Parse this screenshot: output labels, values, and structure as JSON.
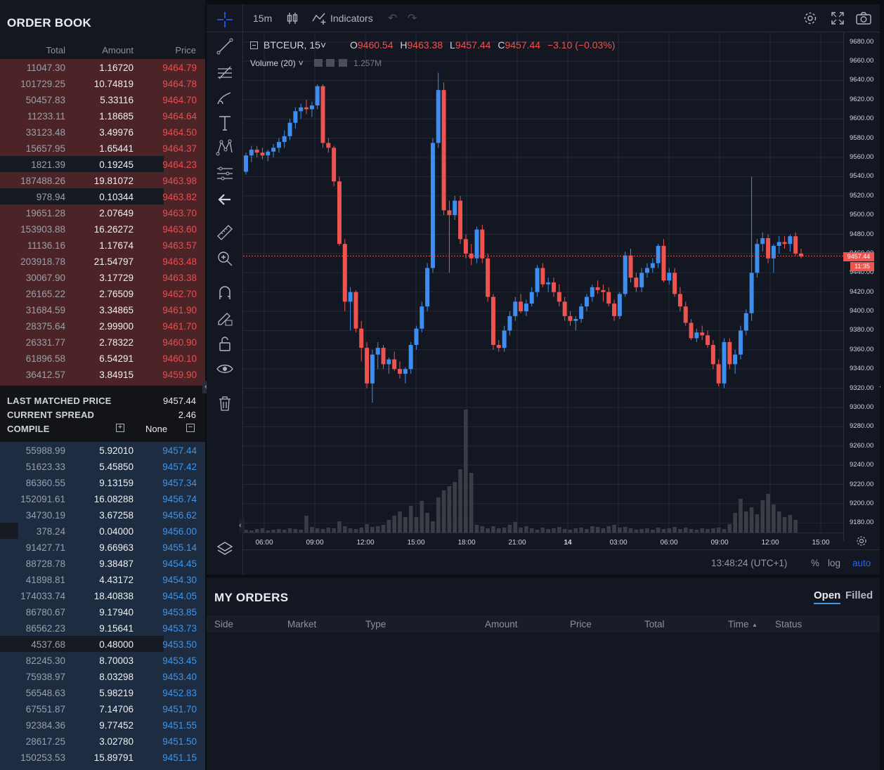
{
  "orderbook": {
    "title": "ORDER BOOK",
    "columns": {
      "total": "Total",
      "amount": "Amount",
      "price": "Price"
    },
    "asks": [
      {
        "total": "11047.30",
        "amount": "1.16720",
        "price": "9464.79"
      },
      {
        "total": "101729.25",
        "amount": "10.74819",
        "price": "9464.78"
      },
      {
        "total": "50457.83",
        "amount": "5.33116",
        "price": "9464.70"
      },
      {
        "total": "11233.11",
        "amount": "1.18685",
        "price": "9464.64"
      },
      {
        "total": "33123.48",
        "amount": "3.49976",
        "price": "9464.50"
      },
      {
        "total": "15657.95",
        "amount": "1.65441",
        "price": "9464.37"
      },
      {
        "total": "1821.39",
        "amount": "0.19245",
        "price": "9464.23"
      },
      {
        "total": "187488.26",
        "amount": "19.81072",
        "price": "9463.98"
      },
      {
        "total": "978.94",
        "amount": "0.10344",
        "price": "9463.82"
      },
      {
        "total": "19651.28",
        "amount": "2.07649",
        "price": "9463.70"
      },
      {
        "total": "153903.88",
        "amount": "16.26272",
        "price": "9463.60"
      },
      {
        "total": "11136.16",
        "amount": "1.17674",
        "price": "9463.57"
      },
      {
        "total": "203918.78",
        "amount": "21.54797",
        "price": "9463.48"
      },
      {
        "total": "30067.90",
        "amount": "3.17729",
        "price": "9463.38"
      },
      {
        "total": "26165.22",
        "amount": "2.76509",
        "price": "9462.70"
      },
      {
        "total": "31684.59",
        "amount": "3.34865",
        "price": "9461.90"
      },
      {
        "total": "28375.64",
        "amount": "2.99900",
        "price": "9461.70"
      },
      {
        "total": "26331.77",
        "amount": "2.78322",
        "price": "9460.90"
      },
      {
        "total": "61896.58",
        "amount": "6.54291",
        "price": "9460.10"
      },
      {
        "total": "36412.57",
        "amount": "3.84915",
        "price": "9459.90"
      }
    ],
    "bids": [
      {
        "total": "55988.99",
        "amount": "5.92010",
        "price": "9457.44"
      },
      {
        "total": "51623.33",
        "amount": "5.45850",
        "price": "9457.42"
      },
      {
        "total": "86360.55",
        "amount": "9.13159",
        "price": "9457.34"
      },
      {
        "total": "152091.61",
        "amount": "16.08288",
        "price": "9456.74"
      },
      {
        "total": "34730.19",
        "amount": "3.67258",
        "price": "9456.62"
      },
      {
        "total": "378.24",
        "amount": "0.04000",
        "price": "9456.00"
      },
      {
        "total": "91427.71",
        "amount": "9.66963",
        "price": "9455.14"
      },
      {
        "total": "88728.78",
        "amount": "9.38487",
        "price": "9454.45"
      },
      {
        "total": "41898.81",
        "amount": "4.43172",
        "price": "9454.30"
      },
      {
        "total": "174033.74",
        "amount": "18.40838",
        "price": "9454.05"
      },
      {
        "total": "86780.67",
        "amount": "9.17940",
        "price": "9453.85"
      },
      {
        "total": "86562.23",
        "amount": "9.15641",
        "price": "9453.73"
      },
      {
        "total": "4537.68",
        "amount": "0.48000",
        "price": "9453.50"
      },
      {
        "total": "82245.30",
        "amount": "8.70003",
        "price": "9453.45"
      },
      {
        "total": "75938.97",
        "amount": "8.03298",
        "price": "9453.40"
      },
      {
        "total": "56548.63",
        "amount": "5.98219",
        "price": "9452.83"
      },
      {
        "total": "67551.87",
        "amount": "7.14706",
        "price": "9451.70"
      },
      {
        "total": "92384.36",
        "amount": "9.77452",
        "price": "9451.55"
      },
      {
        "total": "28617.25",
        "amount": "3.02780",
        "price": "9451.50"
      },
      {
        "total": "150253.53",
        "amount": "15.89791",
        "price": "9451.15"
      }
    ],
    "last_matched_label": "LAST MATCHED PRICE",
    "last_matched_value": "9457.44",
    "spread_label": "CURRENT SPREAD",
    "spread_value": "2.46",
    "compile_label": "COMPILE",
    "compile_value": "None",
    "colors": {
      "ask_bg": "#4c2427",
      "bid_bg": "#1d2c40",
      "ask_price": "#eb4d4f",
      "bid_price": "#3e95ec"
    }
  },
  "chart": {
    "interval": "15m",
    "indicators_label": "Indicators",
    "symbol": "BTCEUR, 15",
    "ohlc": {
      "o_label": "O",
      "o": "9460.54",
      "h_label": "H",
      "h": "9463.38",
      "l_label": "L",
      "l": "9457.44",
      "c_label": "C",
      "c": "9457.44",
      "change": "−3.10 (−0.03%)"
    },
    "volume_label": "Volume (20)",
    "volume_value": "1.257M",
    "price_ticks": [
      "9680.00",
      "9660.00",
      "9640.00",
      "9620.00",
      "9600.00",
      "9580.00",
      "9560.00",
      "9540.00",
      "9520.00",
      "9500.00",
      "9480.00",
      "9460.00",
      "9440.00",
      "9420.00",
      "9400.00",
      "9380.00",
      "9360.00",
      "9340.00",
      "9320.00",
      "9300.00",
      "9280.00",
      "9260.00",
      "9240.00",
      "9220.00",
      "9200.00",
      "9180.00"
    ],
    "time_ticks": [
      "06:00",
      "09:00",
      "12:00",
      "15:00",
      "18:00",
      "21:00",
      "14",
      "03:00",
      "06:00",
      "09:00",
      "12:00",
      "15:00"
    ],
    "last_price_tag": "9457.44",
    "countdown_tag": "11:35",
    "clock": "13:48:24 (UTC+1)",
    "percent_label": "%",
    "log_label": "log",
    "auto_label": "auto",
    "colors": {
      "up": "#3d8ef0",
      "down": "#ef5350",
      "bg": "#131722",
      "grid": "#242936"
    },
    "icons": [
      "crosshair-icon",
      "trend-line-icon",
      "fib-icon",
      "brush-icon",
      "text-icon",
      "pattern-icon",
      "forecast-icon",
      "back-arrow-icon",
      "ruler-icon",
      "zoom-in-icon",
      "magnet-icon",
      "lock-pencil-icon",
      "lock-icon",
      "eye-icon",
      "trash-icon",
      "layers-icon",
      "settings-icon",
      "fullscreen-icon",
      "camera-icon",
      "undo-icon",
      "redo-icon",
      "bar-style-icon",
      "indicators-icon"
    ]
  },
  "chart_data": {
    "type": "candlestick",
    "symbol": "BTCEUR",
    "interval": "15",
    "ylim": [
      9170,
      9690
    ],
    "x_ticks": [
      "06:00",
      "09:00",
      "12:00",
      "15:00",
      "18:00",
      "21:00",
      "14",
      "03:00",
      "06:00",
      "09:00",
      "12:00",
      "15:00"
    ],
    "candles": [
      [
        9545,
        9565,
        9542,
        9562
      ],
      [
        9562,
        9572,
        9555,
        9568
      ],
      [
        9568,
        9572,
        9560,
        9565
      ],
      [
        9565,
        9570,
        9558,
        9562
      ],
      [
        9562,
        9568,
        9556,
        9566
      ],
      [
        9566,
        9574,
        9560,
        9570
      ],
      [
        9570,
        9580,
        9565,
        9576
      ],
      [
        9576,
        9588,
        9570,
        9582
      ],
      [
        9582,
        9600,
        9578,
        9596
      ],
      [
        9596,
        9612,
        9590,
        9608
      ],
      [
        9608,
        9616,
        9600,
        9612
      ],
      [
        9612,
        9620,
        9605,
        9610
      ],
      [
        9610,
        9618,
        9602,
        9614
      ],
      [
        9614,
        9636,
        9610,
        9634
      ],
      [
        9634,
        9636,
        9570,
        9575
      ],
      [
        9575,
        9580,
        9565,
        9570
      ],
      [
        9570,
        9572,
        9530,
        9535
      ],
      [
        9535,
        9540,
        9468,
        9470
      ],
      [
        9470,
        9475,
        9400,
        9410
      ],
      [
        9410,
        9425,
        9380,
        9420
      ],
      [
        9420,
        9422,
        9378,
        9382
      ],
      [
        9382,
        9390,
        9348,
        9362
      ],
      [
        9362,
        9368,
        9320,
        9325
      ],
      [
        9325,
        9360,
        9305,
        9355
      ],
      [
        9355,
        9368,
        9340,
        9362
      ],
      [
        9362,
        9365,
        9340,
        9345
      ],
      [
        9345,
        9352,
        9335,
        9350
      ],
      [
        9350,
        9358,
        9338,
        9340
      ],
      [
        9340,
        9348,
        9330,
        9335
      ],
      [
        9335,
        9342,
        9325,
        9340
      ],
      [
        9340,
        9368,
        9335,
        9365
      ],
      [
        9365,
        9385,
        9360,
        9382
      ],
      [
        9382,
        9410,
        9378,
        9405
      ],
      [
        9405,
        9450,
        9400,
        9445
      ],
      [
        9445,
        9580,
        9440,
        9575
      ],
      [
        9575,
        9648,
        9570,
        9630
      ],
      [
        9630,
        9638,
        9500,
        9505
      ],
      [
        9505,
        9515,
        9440,
        9500
      ],
      [
        9500,
        9520,
        9495,
        9515
      ],
      [
        9515,
        9520,
        9470,
        9475
      ],
      [
        9475,
        9480,
        9455,
        9460
      ],
      [
        9460,
        9470,
        9448,
        9455
      ],
      [
        9455,
        9488,
        9450,
        9485
      ],
      [
        9485,
        9490,
        9450,
        9455
      ],
      [
        9455,
        9460,
        9410,
        9415
      ],
      [
        9415,
        9418,
        9360,
        9365
      ],
      [
        9365,
        9370,
        9358,
        9362
      ],
      [
        9362,
        9385,
        9358,
        9380
      ],
      [
        9380,
        9400,
        9375,
        9395
      ],
      [
        9395,
        9415,
        9390,
        9410
      ],
      [
        9410,
        9418,
        9398,
        9400
      ],
      [
        9400,
        9412,
        9395,
        9408
      ],
      [
        9408,
        9425,
        9405,
        9420
      ],
      [
        9420,
        9448,
        9415,
        9445
      ],
      [
        9445,
        9450,
        9425,
        9428
      ],
      [
        9428,
        9435,
        9420,
        9430
      ],
      [
        9430,
        9435,
        9415,
        9420
      ],
      [
        9420,
        9428,
        9405,
        9410
      ],
      [
        9410,
        9415,
        9390,
        9395
      ],
      [
        9395,
        9400,
        9385,
        9390
      ],
      [
        9390,
        9395,
        9380,
        9392
      ],
      [
        9392,
        9408,
        9388,
        9405
      ],
      [
        9405,
        9418,
        9400,
        9415
      ],
      [
        9415,
        9428,
        9410,
        9425
      ],
      [
        9425,
        9432,
        9418,
        9422
      ],
      [
        9422,
        9428,
        9410,
        9420
      ],
      [
        9420,
        9425,
        9405,
        9408
      ],
      [
        9408,
        9412,
        9390,
        9395
      ],
      [
        9395,
        9420,
        9392,
        9418
      ],
      [
        9418,
        9462,
        9415,
        9458
      ],
      [
        9458,
        9465,
        9430,
        9435
      ],
      [
        9435,
        9440,
        9420,
        9425
      ],
      [
        9425,
        9445,
        9420,
        9440
      ],
      [
        9440,
        9450,
        9435,
        9445
      ],
      [
        9445,
        9455,
        9440,
        9450
      ],
      [
        9450,
        9470,
        9445,
        9468
      ],
      [
        9468,
        9475,
        9430,
        9432
      ],
      [
        9432,
        9445,
        9428,
        9440
      ],
      [
        9440,
        9445,
        9415,
        9418
      ],
      [
        9418,
        9425,
        9400,
        9405
      ],
      [
        9405,
        9410,
        9385,
        9388
      ],
      [
        9388,
        9392,
        9370,
        9372
      ],
      [
        9372,
        9382,
        9368,
        9378
      ],
      [
        9378,
        9385,
        9370,
        9375
      ],
      [
        9375,
        9380,
        9362,
        9365
      ],
      [
        9365,
        9370,
        9340,
        9345
      ],
      [
        9345,
        9350,
        9322,
        9325
      ],
      [
        9325,
        9372,
        9320,
        9368
      ],
      [
        9368,
        9372,
        9340,
        9345
      ],
      [
        9345,
        9360,
        9335,
        9355
      ],
      [
        9355,
        9385,
        9350,
        9380
      ],
      [
        9380,
        9402,
        9375,
        9398
      ],
      [
        9398,
        9540,
        9390,
        9440
      ],
      [
        9440,
        9475,
        9435,
        9470
      ],
      [
        9470,
        9482,
        9462,
        9476
      ],
      [
        9476,
        9480,
        9450,
        9455
      ],
      [
        9455,
        9470,
        9440,
        9468
      ],
      [
        9468,
        9478,
        9460,
        9472
      ],
      [
        9472,
        9478,
        9465,
        9470
      ],
      [
        9470,
        9480,
        9462,
        9478
      ],
      [
        9478,
        9482,
        9458,
        9460
      ],
      [
        9460,
        9465,
        9455,
        9457
      ]
    ],
    "volume": [
      4,
      3,
      5,
      6,
      3,
      4,
      5,
      4,
      6,
      5,
      4,
      24,
      8,
      6,
      5,
      7,
      6,
      16,
      9,
      6,
      5,
      7,
      12,
      8,
      9,
      11,
      18,
      24,
      30,
      22,
      38,
      22,
      45,
      28,
      16,
      50,
      60,
      66,
      72,
      90,
      175,
      85,
      11,
      9,
      6,
      9,
      6,
      7,
      11,
      15,
      7,
      9,
      6,
      4,
      7,
      5,
      6,
      8,
      5,
      4,
      6,
      7,
      5,
      9,
      8,
      6,
      9,
      11,
      7,
      8,
      6,
      4,
      5,
      6,
      4,
      7,
      5,
      6,
      8,
      5,
      7,
      5,
      4,
      6,
      5,
      6,
      7,
      5,
      12,
      28,
      48,
      30,
      36,
      26,
      46,
      55,
      40,
      30,
      22,
      25,
      18
    ],
    "price_scale": "auto"
  },
  "orders": {
    "title": "MY ORDERS",
    "tab_open": "Open",
    "tab_filled": "Filled",
    "columns": [
      "Side",
      "Market",
      "Type",
      "Amount",
      "Price",
      "Total",
      "Time",
      "Status"
    ],
    "time_sort": "▲"
  }
}
